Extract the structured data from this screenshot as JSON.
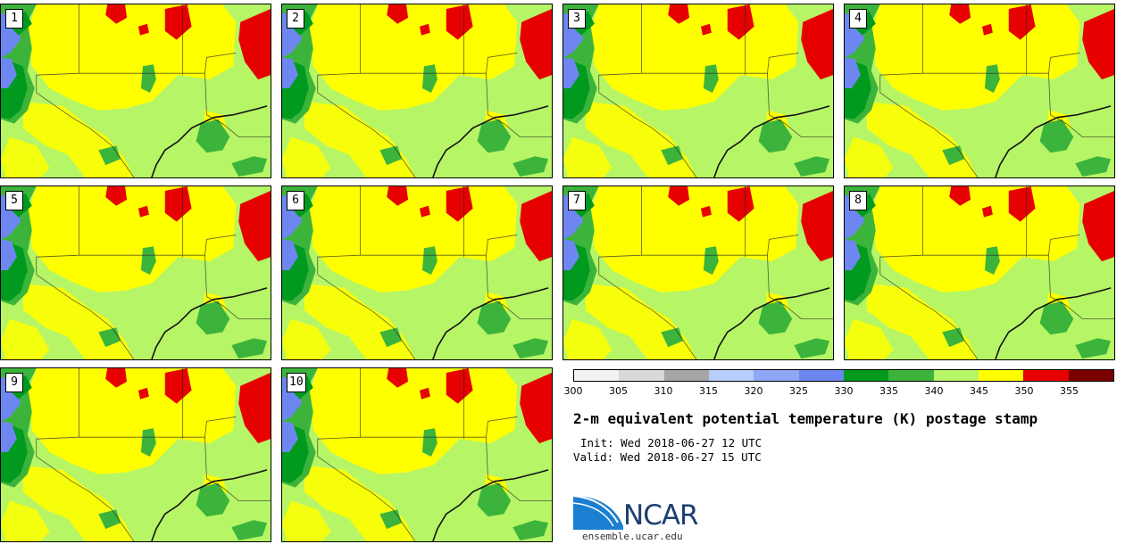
{
  "panels": [
    {
      "label": "1"
    },
    {
      "label": "2"
    },
    {
      "label": "3"
    },
    {
      "label": "4"
    },
    {
      "label": "5"
    },
    {
      "label": "6"
    },
    {
      "label": "7"
    },
    {
      "label": "8"
    },
    {
      "label": "9"
    },
    {
      "label": "10"
    }
  ],
  "colorbar": {
    "ticks": [
      "300",
      "305",
      "310",
      "315",
      "320",
      "325",
      "330",
      "335",
      "340",
      "345",
      "350",
      "355"
    ],
    "colors": [
      "#f2f2f2",
      "#d9d9d9",
      "#a6a6a6",
      "#b7cdfa",
      "#8fa8f5",
      "#6e86ef",
      "#009a1e",
      "#3cb43c",
      "#b6f566",
      "#ffff00",
      "#e60000",
      "#7a0000"
    ]
  },
  "title": "2-m equivalent potential temperature (K) postage stamp",
  "init": "Init: Wed 2018-06-27 12 UTC",
  "valid": "Valid: Wed 2018-06-27 15 UTC",
  "logo": {
    "name": "NCAR",
    "url": "ensemble.ucar.edu"
  }
}
